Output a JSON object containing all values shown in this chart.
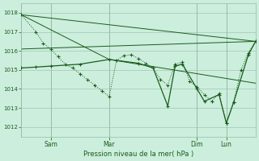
{
  "background_color": "#cceedd",
  "grid_color": "#99bbaa",
  "line_color": "#1a5c1a",
  "xlabel": "Pression niveau de la mer( hPa )",
  "ylim": [
    1011.5,
    1018.5
  ],
  "yticks": [
    1012,
    1013,
    1014,
    1015,
    1016,
    1017,
    1018
  ],
  "xlim": [
    0,
    96
  ],
  "xtick_positions": [
    12,
    36,
    72,
    84
  ],
  "xtick_labels": [
    "Sam",
    "Mar",
    "Dim",
    "Lun"
  ],
  "vline_positions": [
    0,
    12,
    36,
    72,
    84
  ],
  "series_main": {
    "x": [
      0,
      6,
      9,
      12,
      15,
      18,
      21,
      24,
      27,
      30,
      33,
      36,
      39,
      42,
      45,
      48,
      51,
      54,
      57,
      60,
      63,
      66,
      69,
      72,
      75,
      78,
      81,
      84,
      87,
      90,
      93,
      96
    ],
    "y": [
      1017.9,
      1017.0,
      1016.4,
      1016.1,
      1015.7,
      1015.3,
      1015.1,
      1014.8,
      1014.5,
      1014.2,
      1013.9,
      1013.6,
      1015.5,
      1015.75,
      1015.8,
      1015.6,
      1015.35,
      1015.1,
      1014.5,
      1014.2,
      1015.3,
      1015.4,
      1014.4,
      1014.1,
      1013.7,
      1013.35,
      1013.75,
      1012.2,
      1013.3,
      1015.0,
      1015.9,
      1016.5
    ]
  },
  "series_line1": {
    "x": [
      0,
      96
    ],
    "y": [
      1017.9,
      1016.5
    ]
  },
  "series_line2": {
    "x": [
      0,
      36,
      96
    ],
    "y": [
      1017.9,
      1015.55,
      1014.3
    ]
  },
  "series_line3": {
    "x": [
      0,
      96
    ],
    "y": [
      1016.1,
      1016.5
    ]
  },
  "series_zigzag": {
    "x": [
      0,
      6,
      12,
      24,
      36,
      48,
      54,
      60,
      63,
      66,
      72,
      75,
      81,
      84,
      87,
      93,
      96
    ],
    "y": [
      1015.1,
      1015.15,
      1015.2,
      1015.3,
      1015.55,
      1015.35,
      1015.1,
      1013.1,
      1015.2,
      1015.3,
      1014.0,
      1013.35,
      1013.7,
      1012.2,
      1013.3,
      1015.8,
      1016.5
    ]
  }
}
